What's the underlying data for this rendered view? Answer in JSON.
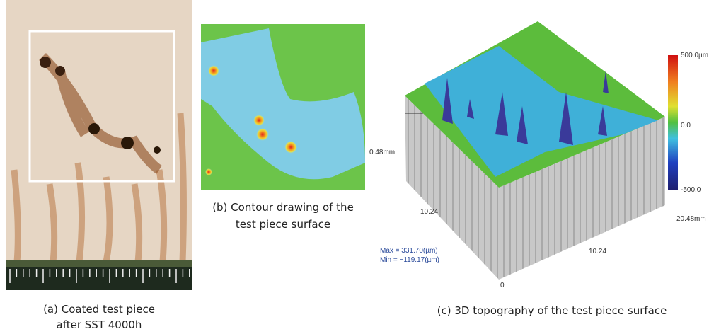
{
  "panels": [
    {
      "caption": [
        "(a) Coated test piece",
        "after SST 4000h"
      ]
    },
    {
      "caption": [
        "(b) Contour drawing of the",
        "test piece surface"
      ]
    },
    {
      "caption": [
        "(c) 3D topography of the test piece surface"
      ],
      "axis_labels": {
        "left": "0.48mm",
        "front_left": "10.24",
        "right": "20.48mm",
        "front_right": "10.24",
        "origin": "0"
      },
      "colorbar": {
        "top": "500.0µm",
        "middle": "0.0",
        "bottom": "-500.0"
      },
      "stats": [
        "Max = 331.70(µm)",
        "Min = −119.17(µm)"
      ]
    }
  ]
}
